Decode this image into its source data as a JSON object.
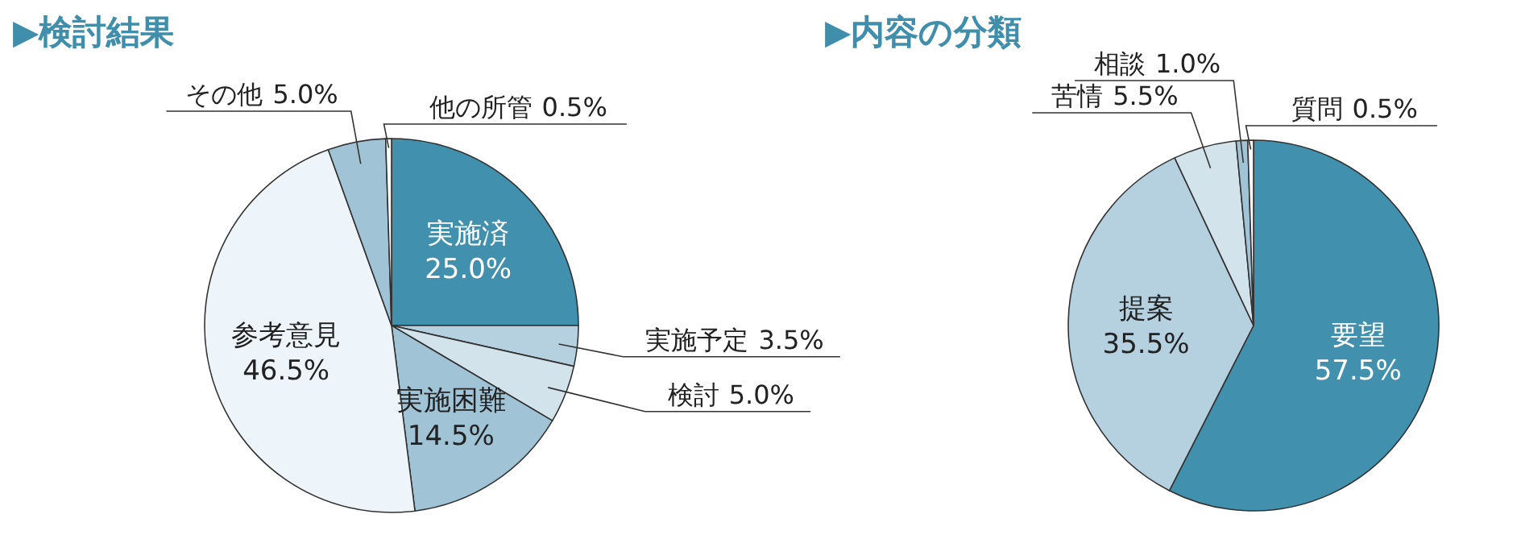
{
  "chart_data": [
    {
      "type": "pie",
      "title": "▶検討結果",
      "categories": [
        "実施済",
        "実施予定",
        "検討",
        "実施困難",
        "参考意見",
        "その他",
        "他の所管"
      ],
      "values": [
        25.0,
        3.5,
        5.0,
        14.5,
        46.5,
        5.0,
        0.5
      ],
      "colors": [
        "#4190ad",
        "#b5d0de",
        "#d3e3ec",
        "#a0c4d6",
        "#eef5fa",
        "#a0c4d6",
        "#ffffff"
      ],
      "value_labels": [
        "25.0%",
        "3.5%",
        "5.0%",
        "14.5%",
        "46.5%",
        "5.0%",
        "0.5%"
      ]
    },
    {
      "type": "pie",
      "title": "▶内容の分類",
      "categories": [
        "要望",
        "提案",
        "苦情",
        "相談",
        "質問"
      ],
      "values": [
        57.5,
        35.5,
        5.5,
        1.0,
        0.5
      ],
      "colors": [
        "#4190ad",
        "#b5d0de",
        "#d3e3ec",
        "#a0c4d6",
        "#ffffff"
      ],
      "value_labels": [
        "57.5%",
        "35.5%",
        "5.5%",
        "1.0%",
        "0.5%"
      ]
    }
  ]
}
